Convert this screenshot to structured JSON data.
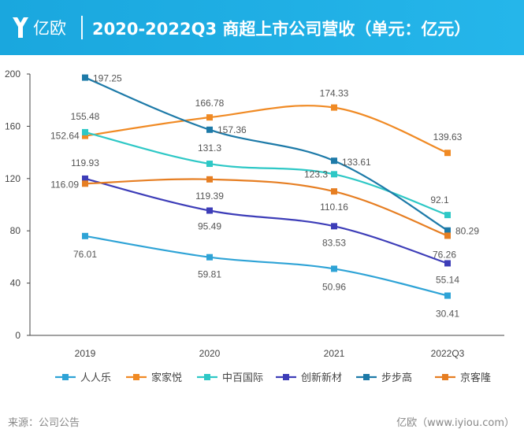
{
  "header": {
    "logo_text": "亿欧",
    "title": "2020-2022Q3 商超上市公司营收（单元：亿元）"
  },
  "footer": {
    "source": "来源：公司公告",
    "brand": "亿欧（www.iyiou.com）"
  },
  "chart_data": {
    "type": "line",
    "title": "2020-2022Q3 商超上市公司营收（单元：亿元）",
    "xlabel": "",
    "ylabel": "",
    "categories": [
      "2019",
      "2020",
      "2021",
      "2022Q3"
    ],
    "ylim": [
      0,
      200
    ],
    "yticks": [
      0,
      40,
      80,
      120,
      160,
      200
    ],
    "legend_position": "bottom",
    "smooth": true,
    "series": [
      {
        "name": "人人乐",
        "color": "#2ea3d6",
        "values": [
          76.01,
          59.81,
          50.96,
          30.41
        ]
      },
      {
        "name": "家家悦",
        "color": "#f08a24",
        "values": [
          152.64,
          166.78,
          174.33,
          139.63
        ]
      },
      {
        "name": "中百国际",
        "color": "#2ec8c6",
        "values": [
          155.48,
          131.3,
          123.3,
          92.1
        ]
      },
      {
        "name": "创新新材",
        "color": "#3d3db8",
        "values": [
          119.93,
          95.49,
          83.53,
          55.14
        ]
      },
      {
        "name": "步步高",
        "color": "#1d7aa8",
        "values": [
          197.25,
          157.36,
          133.61,
          80.29
        ]
      },
      {
        "name": "京客隆",
        "color": "#e67e22",
        "values": [
          116.09,
          119.39,
          110.16,
          76.26
        ]
      }
    ],
    "data_labels": [
      {
        "series": 0,
        "point": 0,
        "text": "76.01"
      },
      {
        "series": 0,
        "point": 1,
        "text": "59.81"
      },
      {
        "series": 0,
        "point": 2,
        "text": "50.96"
      },
      {
        "series": 0,
        "point": 3,
        "text": "30.41"
      },
      {
        "series": 1,
        "point": 0,
        "text": "152.64"
      },
      {
        "series": 1,
        "point": 1,
        "text": "166.78"
      },
      {
        "series": 1,
        "point": 2,
        "text": "174.33"
      },
      {
        "series": 1,
        "point": 3,
        "text": "139.63"
      },
      {
        "series": 2,
        "point": 0,
        "text": "155.48"
      },
      {
        "series": 2,
        "point": 1,
        "text": "131.3"
      },
      {
        "series": 2,
        "point": 2,
        "text": "123.3"
      },
      {
        "series": 2,
        "point": 3,
        "text": "92.1"
      },
      {
        "series": 3,
        "point": 0,
        "text": "119.93"
      },
      {
        "series": 3,
        "point": 1,
        "text": "95.49"
      },
      {
        "series": 3,
        "point": 2,
        "text": "83.53"
      },
      {
        "series": 3,
        "point": 3,
        "text": "55.14"
      },
      {
        "series": 4,
        "point": 0,
        "text": "197.25"
      },
      {
        "series": 4,
        "point": 1,
        "text": "157.36"
      },
      {
        "series": 4,
        "point": 2,
        "text": "133.61"
      },
      {
        "series": 4,
        "point": 3,
        "text": "80.29"
      },
      {
        "series": 5,
        "point": 0,
        "text": "116.09"
      },
      {
        "series": 5,
        "point": 1,
        "text": "119.39"
      },
      {
        "series": 5,
        "point": 2,
        "text": "110.16"
      },
      {
        "series": 5,
        "point": 3,
        "text": "76.26"
      }
    ]
  }
}
